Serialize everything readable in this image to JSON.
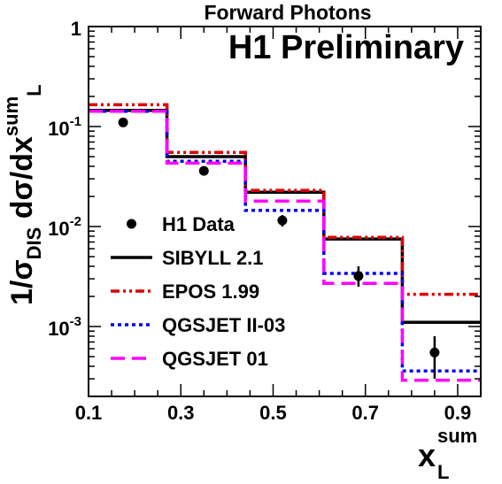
{
  "chart_data": {
    "type": "line",
    "title": "Forward Photons",
    "annotation": "H1 Preliminary",
    "xlabel": {
      "base": "x",
      "sub": "L",
      "sup": "sum"
    },
    "ylabel": {
      "prefix": "1/σ",
      "prefix_sub": "DIS",
      "body": " dσ/dx",
      "sup": "sum",
      "sub": "L"
    },
    "xlim": [
      0.1,
      0.95
    ],
    "ylim": [
      0.0002,
      1
    ],
    "yscale": "log",
    "x_ticks": [
      "0.1",
      "0.3",
      "0.5",
      "0.7",
      "0.9"
    ],
    "y_ticks": [
      {
        "value": 1,
        "label": "1"
      },
      {
        "value": 0.1,
        "label": "10",
        "exp": "-1"
      },
      {
        "value": 0.01,
        "label": "10",
        "exp": "-2"
      },
      {
        "value": 0.001,
        "label": "10",
        "exp": "-3"
      }
    ],
    "bin_edges": [
      0.1,
      0.27,
      0.44,
      0.61,
      0.78,
      0.95
    ],
    "legend_position": "bottom-left",
    "data_points": {
      "name": "H1 Data",
      "x": [
        0.175,
        0.35,
        0.52,
        0.685,
        0.85
      ],
      "y": [
        0.11,
        0.036,
        0.0115,
        0.0032,
        0.00055
      ],
      "err_low": [
        0.008,
        0.003,
        0.0015,
        0.0007,
        0.00025
      ],
      "err_high": [
        0.008,
        0.003,
        0.0015,
        0.0008,
        0.00025
      ]
    },
    "series": [
      {
        "name": "SIBYLL 2.1",
        "color": "#000000",
        "dash": "solid",
        "values": [
          0.145,
          0.05,
          0.022,
          0.0075,
          0.0011
        ]
      },
      {
        "name": "EPOS 1.99",
        "color": "#dd0000",
        "dash": "dashdotdot",
        "values": [
          0.165,
          0.055,
          0.023,
          0.0078,
          0.0021
        ]
      },
      {
        "name": "QGSJET II-03",
        "color": "#0000ee",
        "dash": "dotted",
        "values": [
          0.142,
          0.045,
          0.0145,
          0.0034,
          0.00036
        ]
      },
      {
        "name": "QGSJET 01",
        "color": "#ff00ff",
        "dash": "dashed",
        "values": [
          0.142,
          0.043,
          0.018,
          0.0027,
          0.00029
        ]
      }
    ]
  }
}
